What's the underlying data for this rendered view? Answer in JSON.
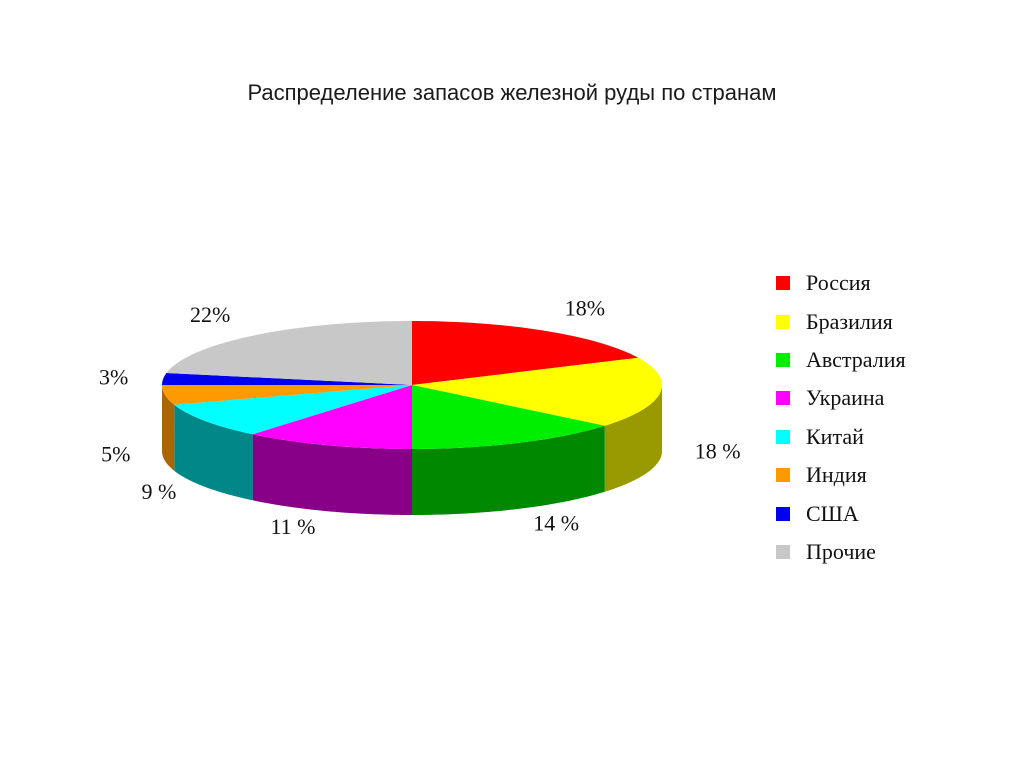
{
  "chart_data": {
    "type": "pie",
    "title": "Распределение запасов железной руды по странам",
    "categories": [
      "Россия",
      "Бразилия",
      "Австралия",
      "Украина",
      "Китай",
      "Индия",
      "США",
      "Прочие"
    ],
    "values": [
      18,
      18,
      14,
      11,
      9,
      5,
      3,
      22
    ],
    "data_labels": [
      "18%",
      "18 %",
      "14 %",
      "11 %",
      "9 %",
      "5%",
      "3%",
      "22%"
    ],
    "colors": [
      "#ff0000",
      "#ffff00",
      "#00ee00",
      "#ff00ff",
      "#00ffff",
      "#ff9900",
      "#0000ee",
      "#c8c8c8"
    ],
    "side_colors": [
      "#b80000",
      "#999900",
      "#008800",
      "#880088",
      "#008888",
      "#aa6600",
      "#000099",
      "#8c8c8c"
    ],
    "legend_position": "right",
    "three_d": true
  }
}
